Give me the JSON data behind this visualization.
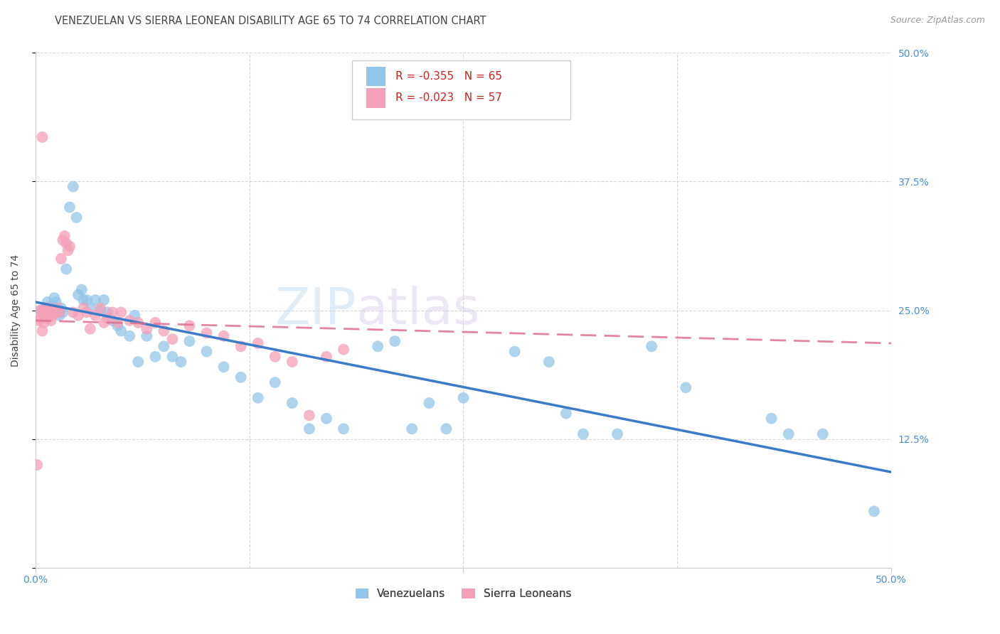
{
  "title": "VENEZUELAN VS SIERRA LEONEAN DISABILITY AGE 65 TO 74 CORRELATION CHART",
  "source": "Source: ZipAtlas.com",
  "ylabel": "Disability Age 65 to 74",
  "xlim": [
    0.0,
    0.5
  ],
  "ylim": [
    0.0,
    0.5
  ],
  "watermark_zip": "ZIP",
  "watermark_atlas": "atlas",
  "legend_r1": "R = -0.355   N = 65",
  "legend_r2": "R = -0.023   N = 57",
  "venezuelan_color": "#92C5E8",
  "sierra_leonean_color": "#F4A0B8",
  "trend_venezuelan_color": "#3A7CC8",
  "trend_sierra_leonean_color": "#E07090",
  "background_color": "#ffffff",
  "grid_color": "#cccccc",
  "title_color": "#444444",
  "tick_color": "#4A90D9",
  "ylabel_color": "#444444",
  "source_color": "#999999",
  "venezuelan_x": [
    0.003,
    0.004,
    0.005,
    0.006,
    0.007,
    0.008,
    0.009,
    0.01,
    0.011,
    0.012,
    0.013,
    0.014,
    0.015,
    0.016,
    0.018,
    0.02,
    0.022,
    0.024,
    0.025,
    0.027,
    0.028,
    0.03,
    0.032,
    0.035,
    0.038,
    0.04,
    0.042,
    0.045,
    0.048,
    0.05,
    0.055,
    0.058,
    0.06,
    0.065,
    0.07,
    0.075,
    0.08,
    0.085,
    0.09,
    0.1,
    0.11,
    0.12,
    0.13,
    0.14,
    0.15,
    0.16,
    0.17,
    0.18,
    0.2,
    0.21,
    0.22,
    0.23,
    0.24,
    0.25,
    0.28,
    0.3,
    0.31,
    0.32,
    0.34,
    0.36,
    0.38,
    0.43,
    0.44,
    0.46,
    0.49
  ],
  "venezuelan_y": [
    0.25,
    0.248,
    0.245,
    0.252,
    0.258,
    0.248,
    0.245,
    0.255,
    0.262,
    0.258,
    0.248,
    0.245,
    0.252,
    0.248,
    0.29,
    0.35,
    0.37,
    0.34,
    0.265,
    0.27,
    0.26,
    0.26,
    0.252,
    0.26,
    0.25,
    0.26,
    0.248,
    0.24,
    0.235,
    0.23,
    0.225,
    0.245,
    0.2,
    0.225,
    0.205,
    0.215,
    0.205,
    0.2,
    0.22,
    0.21,
    0.195,
    0.185,
    0.165,
    0.18,
    0.16,
    0.135,
    0.145,
    0.135,
    0.215,
    0.22,
    0.135,
    0.16,
    0.135,
    0.165,
    0.21,
    0.2,
    0.15,
    0.13,
    0.13,
    0.215,
    0.175,
    0.145,
    0.13,
    0.13,
    0.055
  ],
  "sierra_leonean_x": [
    0.001,
    0.002,
    0.003,
    0.003,
    0.004,
    0.004,
    0.005,
    0.005,
    0.006,
    0.006,
    0.007,
    0.007,
    0.008,
    0.008,
    0.009,
    0.009,
    0.01,
    0.01,
    0.011,
    0.012,
    0.013,
    0.014,
    0.015,
    0.016,
    0.017,
    0.018,
    0.019,
    0.02,
    0.022,
    0.025,
    0.028,
    0.03,
    0.032,
    0.035,
    0.038,
    0.04,
    0.042,
    0.045,
    0.048,
    0.05,
    0.055,
    0.06,
    0.065,
    0.07,
    0.075,
    0.08,
    0.09,
    0.1,
    0.11,
    0.12,
    0.13,
    0.14,
    0.15,
    0.16,
    0.17,
    0.18,
    0.004
  ],
  "sierra_leonean_y": [
    0.1,
    0.24,
    0.242,
    0.25,
    0.23,
    0.248,
    0.245,
    0.238,
    0.252,
    0.248,
    0.242,
    0.25,
    0.245,
    0.252,
    0.248,
    0.24,
    0.245,
    0.25,
    0.248,
    0.25,
    0.252,
    0.248,
    0.3,
    0.318,
    0.322,
    0.315,
    0.308,
    0.312,
    0.248,
    0.245,
    0.252,
    0.248,
    0.232,
    0.245,
    0.252,
    0.238,
    0.242,
    0.248,
    0.238,
    0.248,
    0.24,
    0.238,
    0.232,
    0.238,
    0.23,
    0.222,
    0.235,
    0.228,
    0.225,
    0.215,
    0.218,
    0.205,
    0.2,
    0.148,
    0.205,
    0.212,
    0.418
  ],
  "title_fontsize": 10.5,
  "axis_label_fontsize": 10,
  "tick_fontsize": 10,
  "legend_fontsize": 11,
  "watermark_fontsize_zip": 52,
  "watermark_fontsize_atlas": 52,
  "source_fontsize": 9
}
